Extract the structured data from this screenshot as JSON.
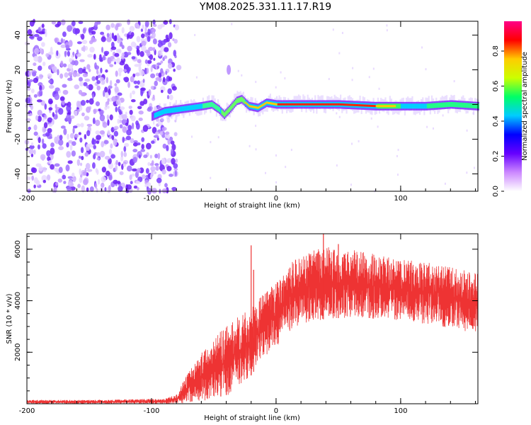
{
  "title": "YM08.2025.331.11.17.R19",
  "chart_data": [
    {
      "type": "heatmap",
      "xlabel": "Height of straight line (km)",
      "ylabel": "Frequency (Hz)",
      "xlim": [
        -200,
        162
      ],
      "ylim": [
        -50,
        48
      ],
      "x_ticks": [
        "-200",
        "-100",
        "0",
        "100"
      ],
      "y_ticks": [
        "-40",
        "-20",
        "0",
        "20",
        "40"
      ],
      "colorbar": {
        "label": "Normalized spectral amplitude",
        "range": [
          0,
          0.97
        ],
        "ticks": [
          "0.0",
          "0.2",
          "0.4",
          "0.6",
          "0.8"
        ],
        "colors": [
          "#ffffff",
          "#cc88ff",
          "#6600ff",
          "#0000ff",
          "#00ccff",
          "#00ff66",
          "#ccff00",
          "#ffcc00",
          "#ff0000",
          "#ff0088"
        ]
      },
      "ridge": [
        {
          "x": -100,
          "y": -7
        },
        {
          "x": -90,
          "y": -4
        },
        {
          "x": -80,
          "y": -3
        },
        {
          "x": -70,
          "y": -2
        },
        {
          "x": -60,
          "y": -1
        },
        {
          "x": -52,
          "y": 0
        },
        {
          "x": -46,
          "y": -3
        },
        {
          "x": -42,
          "y": -6
        },
        {
          "x": -38,
          "y": -3
        },
        {
          "x": -32,
          "y": 2
        },
        {
          "x": -28,
          "y": 3
        },
        {
          "x": -22,
          "y": -1
        },
        {
          "x": -15,
          "y": -2
        },
        {
          "x": -8,
          "y": 1
        },
        {
          "x": 0,
          "y": 0
        },
        {
          "x": 20,
          "y": 0
        },
        {
          "x": 50,
          "y": 0
        },
        {
          "x": 80,
          "y": -1
        },
        {
          "x": 100,
          "y": -1
        },
        {
          "x": 120,
          "y": -1
        },
        {
          "x": 140,
          "y": 0
        },
        {
          "x": 162,
          "y": -1
        }
      ]
    },
    {
      "type": "line",
      "xlabel": "Height of straight line (km)",
      "ylabel": "SNR (10 * v/v)",
      "xlim": [
        -200,
        162
      ],
      "ylim": [
        0,
        6600
      ],
      "x_ticks": [
        "-200",
        "-100",
        "0",
        "100"
      ],
      "y_ticks": [
        "2000",
        "4000",
        "6000"
      ],
      "color": "#ee3333",
      "envelope": [
        {
          "x": -200,
          "low": 0,
          "high": 150
        },
        {
          "x": -150,
          "low": 0,
          "high": 150
        },
        {
          "x": -90,
          "low": 0,
          "high": 200
        },
        {
          "x": -80,
          "low": 0,
          "high": 350
        },
        {
          "x": -70,
          "low": 50,
          "high": 1300
        },
        {
          "x": -60,
          "low": 100,
          "high": 2000
        },
        {
          "x": -50,
          "low": 200,
          "high": 2600
        },
        {
          "x": -40,
          "low": 300,
          "high": 3000
        },
        {
          "x": -30,
          "low": 600,
          "high": 3400
        },
        {
          "x": -20,
          "low": 1100,
          "high": 3700
        },
        {
          "x": -10,
          "low": 1800,
          "high": 4300
        },
        {
          "x": 0,
          "low": 2200,
          "high": 4700
        },
        {
          "x": 10,
          "low": 2800,
          "high": 5400
        },
        {
          "x": 20,
          "low": 3100,
          "high": 5800
        },
        {
          "x": 40,
          "low": 3300,
          "high": 6100
        },
        {
          "x": 60,
          "low": 3350,
          "high": 6000
        },
        {
          "x": 80,
          "low": 3300,
          "high": 5800
        },
        {
          "x": 100,
          "low": 3250,
          "high": 5600
        },
        {
          "x": 120,
          "low": 3100,
          "high": 5500
        },
        {
          "x": 140,
          "low": 2900,
          "high": 5300
        },
        {
          "x": 162,
          "low": 2750,
          "high": 5100
        }
      ],
      "spikes": [
        {
          "x": -20,
          "y": 6150
        },
        {
          "x": -18,
          "y": 5200
        },
        {
          "x": 38,
          "y": 6600
        },
        {
          "x": 50,
          "y": 6200
        }
      ]
    }
  ]
}
